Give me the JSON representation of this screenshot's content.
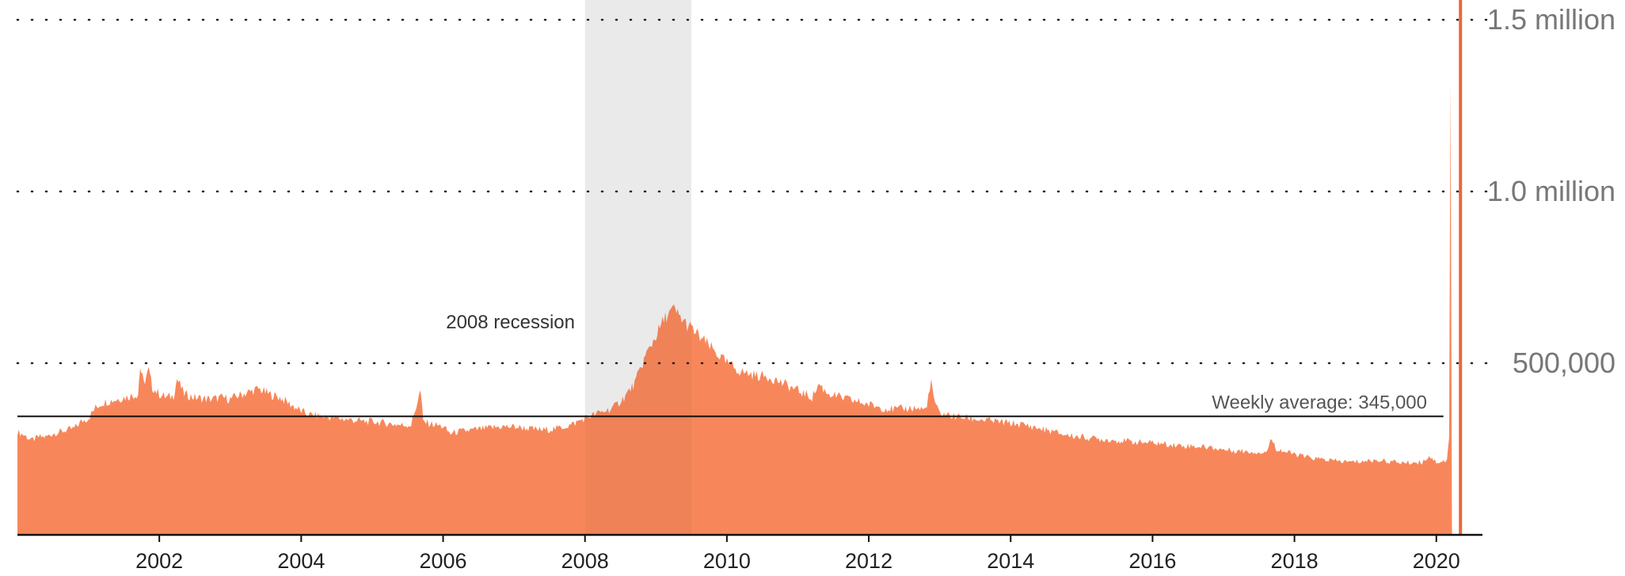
{
  "chart_data": {
    "type": "area",
    "title": "",
    "xlabel": "",
    "ylabel": "",
    "xlim": [
      2000.0,
      2020.65
    ],
    "ylim": [
      0,
      1500000
    ],
    "grid": true,
    "x_ticks": [
      2002,
      2004,
      2006,
      2008,
      2010,
      2012,
      2014,
      2016,
      2018,
      2020
    ],
    "x_tick_labels": [
      "2002",
      "2004",
      "2006",
      "2008",
      "2010",
      "2012",
      "2014",
      "2016",
      "2018",
      "2020"
    ],
    "y_ticks": [
      500000,
      1000000,
      1500000
    ],
    "y_tick_labels": [
      "500,000",
      "1.0 million",
      "1.5 million"
    ],
    "colors": {
      "area": "#f7875a",
      "spike": "#e8683a",
      "recession": "#f2f2f2"
    },
    "recession": {
      "start": 2008.0,
      "end": 2009.5,
      "label": "2008 recession"
    },
    "average": {
      "value": 345000,
      "label": "Weekly average: 345,000"
    },
    "series": [
      {
        "values": [
          [
            2000.0,
            300000
          ],
          [
            2000.1,
            290000
          ],
          [
            2000.2,
            275000
          ],
          [
            2000.3,
            285000
          ],
          [
            2000.4,
            285000
          ],
          [
            2000.5,
            295000
          ],
          [
            2000.6,
            300000
          ],
          [
            2000.7,
            305000
          ],
          [
            2000.8,
            310000
          ],
          [
            2000.9,
            330000
          ],
          [
            2001.0,
            340000
          ],
          [
            2001.1,
            370000
          ],
          [
            2001.2,
            385000
          ],
          [
            2001.3,
            390000
          ],
          [
            2001.4,
            395000
          ],
          [
            2001.5,
            400000
          ],
          [
            2001.6,
            405000
          ],
          [
            2001.7,
            410000
          ],
          [
            2001.73,
            490000
          ],
          [
            2001.78,
            440000
          ],
          [
            2001.85,
            480000
          ],
          [
            2001.9,
            430000
          ],
          [
            2002.0,
            410000
          ],
          [
            2002.1,
            400000
          ],
          [
            2002.2,
            405000
          ],
          [
            2002.25,
            455000
          ],
          [
            2002.35,
            410000
          ],
          [
            2002.5,
            400000
          ],
          [
            2002.7,
            395000
          ],
          [
            2002.9,
            400000
          ],
          [
            2003.0,
            395000
          ],
          [
            2003.1,
            405000
          ],
          [
            2003.25,
            415000
          ],
          [
            2003.4,
            425000
          ],
          [
            2003.55,
            410000
          ],
          [
            2003.7,
            400000
          ],
          [
            2003.85,
            380000
          ],
          [
            2004.0,
            360000
          ],
          [
            2004.1,
            350000
          ],
          [
            2004.3,
            345000
          ],
          [
            2004.5,
            340000
          ],
          [
            2004.7,
            335000
          ],
          [
            2004.9,
            330000
          ],
          [
            2005.0,
            330000
          ],
          [
            2005.2,
            325000
          ],
          [
            2005.4,
            320000
          ],
          [
            2005.55,
            320000
          ],
          [
            2005.68,
            420000
          ],
          [
            2005.72,
            330000
          ],
          [
            2005.8,
            325000
          ],
          [
            2006.0,
            315000
          ],
          [
            2006.1,
            295000
          ],
          [
            2006.2,
            300000
          ],
          [
            2006.4,
            305000
          ],
          [
            2006.6,
            310000
          ],
          [
            2006.8,
            315000
          ],
          [
            2007.0,
            315000
          ],
          [
            2007.2,
            310000
          ],
          [
            2007.4,
            305000
          ],
          [
            2007.6,
            310000
          ],
          [
            2007.8,
            320000
          ],
          [
            2008.0,
            340000
          ],
          [
            2008.2,
            355000
          ],
          [
            2008.4,
            370000
          ],
          [
            2008.55,
            400000
          ],
          [
            2008.7,
            440000
          ],
          [
            2008.85,
            520000
          ],
          [
            2009.0,
            580000
          ],
          [
            2009.15,
            640000
          ],
          [
            2009.25,
            655000
          ],
          [
            2009.4,
            620000
          ],
          [
            2009.6,
            580000
          ],
          [
            2009.8,
            540000
          ],
          [
            2010.0,
            500000
          ],
          [
            2010.2,
            475000
          ],
          [
            2010.4,
            465000
          ],
          [
            2010.6,
            460000
          ],
          [
            2010.8,
            440000
          ],
          [
            2011.0,
            420000
          ],
          [
            2011.2,
            400000
          ],
          [
            2011.3,
            440000
          ],
          [
            2011.4,
            415000
          ],
          [
            2011.6,
            400000
          ],
          [
            2011.8,
            390000
          ],
          [
            2012.0,
            380000
          ],
          [
            2012.2,
            370000
          ],
          [
            2012.4,
            365000
          ],
          [
            2012.6,
            370000
          ],
          [
            2012.8,
            365000
          ],
          [
            2012.88,
            440000
          ],
          [
            2012.95,
            370000
          ],
          [
            2013.0,
            355000
          ],
          [
            2013.2,
            345000
          ],
          [
            2013.4,
            340000
          ],
          [
            2013.6,
            335000
          ],
          [
            2013.8,
            330000
          ],
          [
            2014.0,
            325000
          ],
          [
            2014.2,
            320000
          ],
          [
            2014.4,
            310000
          ],
          [
            2014.6,
            300000
          ],
          [
            2014.8,
            290000
          ],
          [
            2015.0,
            285000
          ],
          [
            2015.2,
            280000
          ],
          [
            2015.4,
            277000
          ],
          [
            2015.6,
            273000
          ],
          [
            2015.8,
            270000
          ],
          [
            2016.0,
            268000
          ],
          [
            2016.2,
            264000
          ],
          [
            2016.4,
            260000
          ],
          [
            2016.6,
            258000
          ],
          [
            2016.8,
            255000
          ],
          [
            2017.0,
            248000
          ],
          [
            2017.2,
            245000
          ],
          [
            2017.4,
            242000
          ],
          [
            2017.6,
            240000
          ],
          [
            2017.68,
            280000
          ],
          [
            2017.75,
            250000
          ],
          [
            2017.9,
            240000
          ],
          [
            2018.0,
            235000
          ],
          [
            2018.2,
            225000
          ],
          [
            2018.4,
            220000
          ],
          [
            2018.6,
            215000
          ],
          [
            2018.8,
            212000
          ],
          [
            2019.0,
            215000
          ],
          [
            2019.2,
            218000
          ],
          [
            2019.4,
            212000
          ],
          [
            2019.6,
            210000
          ],
          [
            2019.8,
            212000
          ],
          [
            2019.9,
            230000
          ],
          [
            2020.0,
            212000
          ],
          [
            2020.1,
            215000
          ],
          [
            2020.15,
            216000
          ],
          [
            2020.18,
            282000
          ],
          [
            2020.2,
            1320000
          ],
          [
            2020.22,
            0
          ]
        ]
      }
    ],
    "spike": {
      "x": 2020.34,
      "value": 1650000
    }
  }
}
